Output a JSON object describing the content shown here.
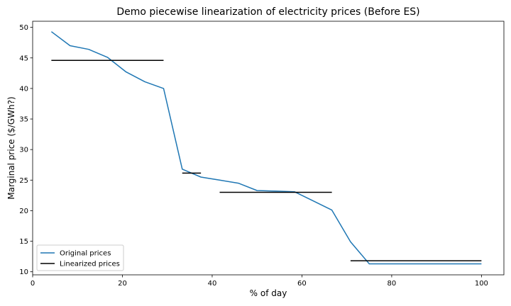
{
  "chart_data": {
    "type": "line",
    "title": "Demo piecewise linearization of electricity prices (Before ES)",
    "xlabel": "% of day",
    "ylabel": "Marginal price ($/GWh?)",
    "xlim": [
      0,
      105
    ],
    "ylim": [
      9.5,
      51
    ],
    "xticks": [
      0,
      20,
      40,
      60,
      80,
      100
    ],
    "yticks": [
      10,
      15,
      20,
      25,
      30,
      35,
      40,
      45,
      50
    ],
    "grid": false,
    "legend_position": "lower left",
    "series": [
      {
        "name": "Original prices",
        "color": "#1f77b4",
        "style": "line",
        "x": [
          4.17,
          8.33,
          12.5,
          16.67,
          20.83,
          25.0,
          29.17,
          33.33,
          37.5,
          41.67,
          45.83,
          50.0,
          54.17,
          58.33,
          62.5,
          66.67,
          70.83,
          75.0,
          79.17,
          83.33,
          87.5,
          91.67,
          95.83,
          100.0
        ],
        "y": [
          49.3,
          47.0,
          46.4,
          45.1,
          42.7,
          41.1,
          40.0,
          26.8,
          25.5,
          25.0,
          24.5,
          23.3,
          23.2,
          23.1,
          21.6,
          20.1,
          14.9,
          11.3,
          11.3,
          11.3,
          11.3,
          11.3,
          11.3,
          11.3
        ]
      },
      {
        "name": "Linearized prices",
        "color": "#000000",
        "style": "segments",
        "segments": [
          {
            "x": [
              4.17,
              29.17
            ],
            "y": 44.6
          },
          {
            "x": [
              33.33,
              37.5
            ],
            "y": 26.15
          },
          {
            "x": [
              41.67,
              66.67
            ],
            "y": 23.0
          },
          {
            "x": [
              70.83,
              100.0
            ],
            "y": 11.8
          }
        ]
      }
    ]
  }
}
